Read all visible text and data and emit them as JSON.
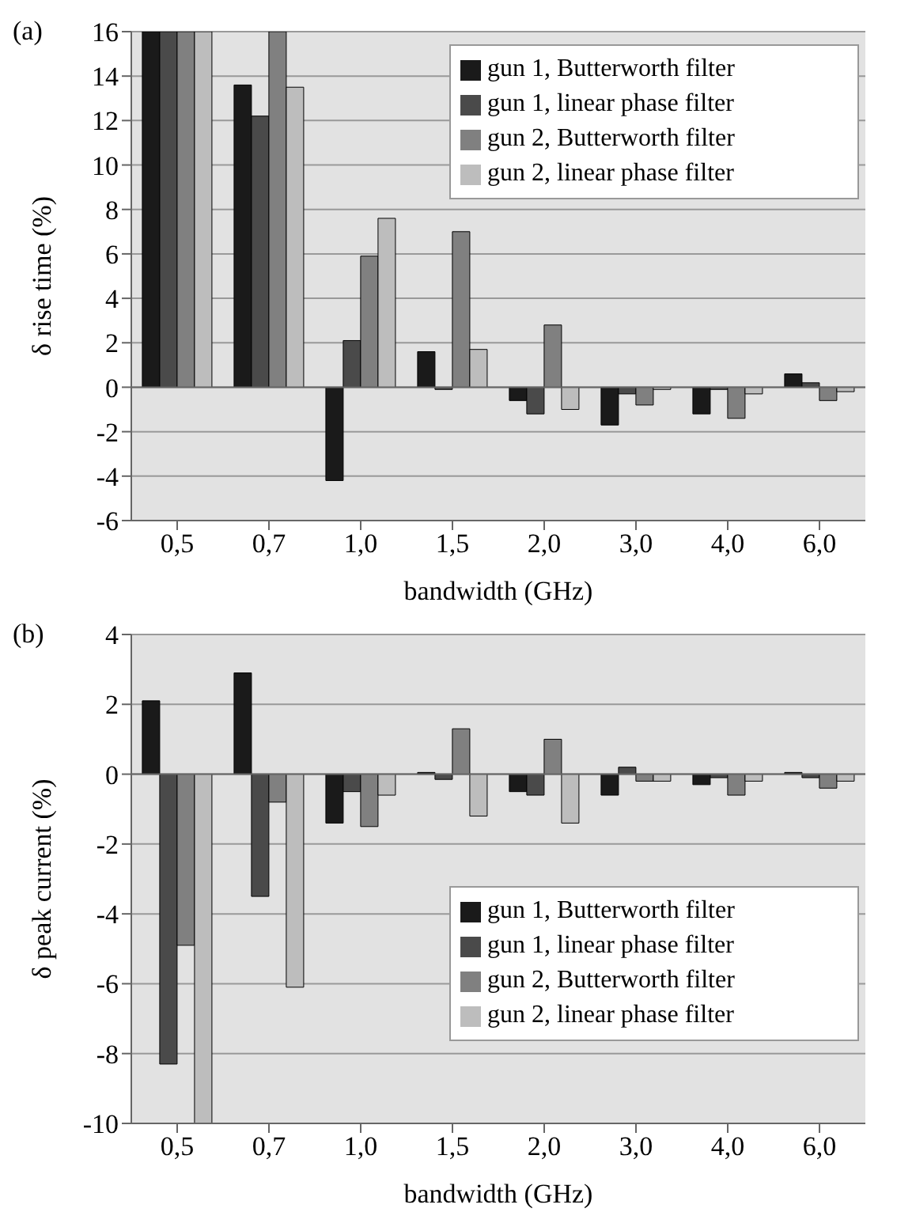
{
  "chart_data": [
    {
      "type": "bar",
      "annotations": [
        "(a)"
      ],
      "xlabel": "bandwidth  (GHz)",
      "ylabel": "δ rise time  (%)",
      "categories": [
        "0,5",
        "0,7",
        "1,0",
        "1,5",
        "2,0",
        "3,0",
        "4,0",
        "6,0"
      ],
      "ylim": [
        -6,
        16
      ],
      "yticks": [
        -6,
        -4,
        -2,
        0,
        2,
        4,
        6,
        8,
        10,
        12,
        14,
        16
      ],
      "grid": "y",
      "legend": "top right",
      "series": [
        {
          "name": "gun 1, Butterworth filter",
          "color": "#1a1a1a",
          "values": [
            16,
            13.6,
            -4.2,
            1.6,
            -0.6,
            -1.7,
            -1.2,
            0.6
          ]
        },
        {
          "name": "gun 1, linear phase filter",
          "color": "#4a4a4a",
          "values": [
            16,
            12.2,
            2.1,
            -0.1,
            -1.2,
            -0.3,
            -0.1,
            0.2
          ]
        },
        {
          "name": "gun 2, Butterworth filter",
          "color": "#808080",
          "values": [
            16,
            16,
            5.9,
            7.0,
            2.8,
            -0.8,
            -1.4,
            -0.6
          ]
        },
        {
          "name": "gun 2, linear phase filter",
          "color": "#bdbdbd",
          "values": [
            16,
            13.5,
            7.6,
            1.7,
            -1.0,
            -0.1,
            -0.3,
            -0.2
          ]
        }
      ]
    },
    {
      "type": "bar",
      "annotations": [
        "(b)"
      ],
      "xlabel": "bandwidth  (GHz)",
      "ylabel": "δ peak current  (%)",
      "categories": [
        "0,5",
        "0,7",
        "1,0",
        "1,5",
        "2,0",
        "3,0",
        "4,0",
        "6,0"
      ],
      "ylim": [
        -10,
        4
      ],
      "yticks": [
        -10,
        -8,
        -6,
        -4,
        -2,
        0,
        2,
        4
      ],
      "grid": "y",
      "legend": "bottom right",
      "series": [
        {
          "name": "gun 1, Butterworth filter",
          "color": "#1a1a1a",
          "values": [
            2.1,
            2.9,
            -1.4,
            0.05,
            -0.5,
            -0.6,
            -0.3,
            0.05
          ]
        },
        {
          "name": "gun 1, linear phase filter",
          "color": "#4a4a4a",
          "values": [
            -8.3,
            -3.5,
            -0.5,
            -0.15,
            -0.6,
            0.2,
            -0.1,
            -0.1
          ]
        },
        {
          "name": "gun 2, Butterworth filter",
          "color": "#808080",
          "values": [
            -4.9,
            -0.8,
            -1.5,
            1.3,
            1.0,
            -0.2,
            -0.6,
            -0.4
          ]
        },
        {
          "name": "gun 2, linear phase filter",
          "color": "#bdbdbd",
          "values": [
            -10,
            -6.1,
            -0.6,
            -1.2,
            -1.4,
            -0.2,
            -0.2,
            -0.2
          ]
        }
      ]
    }
  ]
}
